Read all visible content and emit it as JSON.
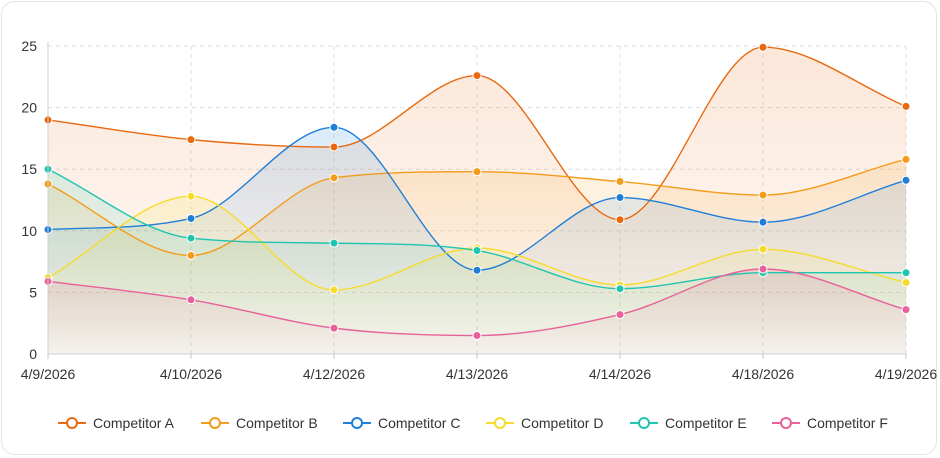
{
  "chart_data": {
    "type": "area",
    "title": "",
    "xlabel": "",
    "ylabel": "",
    "categories": [
      "4/9/2026",
      "4/10/2026",
      "4/12/2026",
      "4/13/2026",
      "4/14/2026",
      "4/18/2026",
      "4/19/2026"
    ],
    "y_ticks": [
      0,
      5,
      10,
      15,
      20,
      25
    ],
    "ylim": [
      0,
      25
    ],
    "grid": true,
    "legend_position": "bottom",
    "series": [
      {
        "name": "Competitor A",
        "color": "#E8690F",
        "values": [
          19.0,
          17.4,
          16.8,
          22.6,
          10.9,
          24.9,
          20.1
        ]
      },
      {
        "name": "Competitor B",
        "color": "#F39C1B",
        "values": [
          13.8,
          8.0,
          14.3,
          14.8,
          14.0,
          12.9,
          15.8
        ]
      },
      {
        "name": "Competitor C",
        "color": "#1F7FD8",
        "values": [
          10.1,
          11.0,
          18.4,
          6.8,
          12.7,
          10.7,
          14.1
        ]
      },
      {
        "name": "Competitor D",
        "color": "#F6DC2A",
        "values": [
          6.2,
          12.8,
          5.2,
          8.6,
          5.6,
          8.5,
          5.8
        ]
      },
      {
        "name": "Competitor E",
        "color": "#1FC5AF",
        "values": [
          15.0,
          9.4,
          9.0,
          8.4,
          5.3,
          6.6,
          6.6
        ]
      },
      {
        "name": "Competitor F",
        "color": "#E8619A",
        "values": [
          5.9,
          4.4,
          2.1,
          1.5,
          3.2,
          6.9,
          3.6
        ]
      }
    ]
  }
}
